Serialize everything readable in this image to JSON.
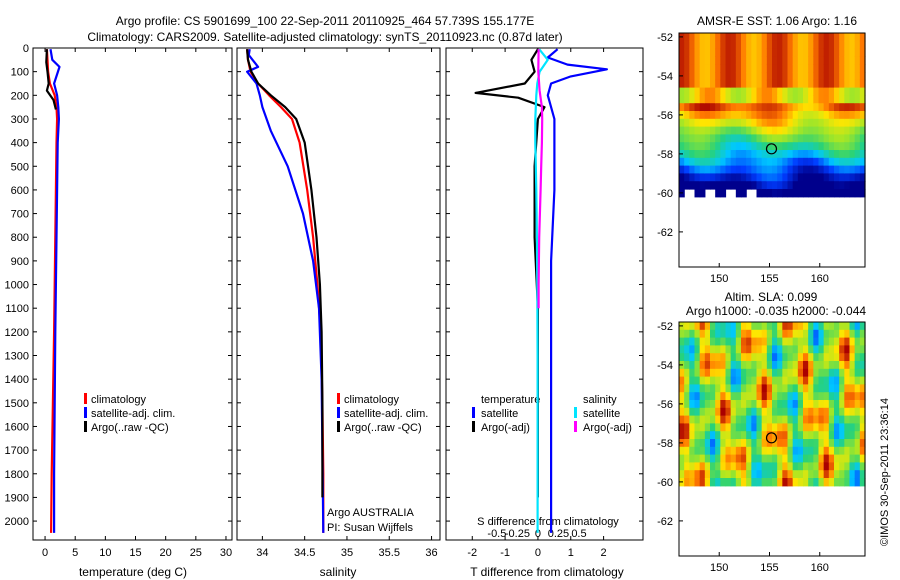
{
  "title_line1": "Argo profile: CS 5901699_100 22-Sep-2011 20110925_464 57.739S 155.177E",
  "title_line2": "Climatology: CARS2009. Satellite-adjusted climatology: synTS_20110923.nc (0.87d later)",
  "side_text": "©IMOS 30-Sep-2011 23:36:14",
  "colors": {
    "clim": "#ff0000",
    "sat": "#0000ff",
    "argo": "#000000",
    "sal_sat": "#00e5ff",
    "sal_argo": "#ff00ff"
  },
  "chart_data": [
    {
      "id": "temp",
      "type": "line",
      "xlabel": "temperature (deg C)",
      "ylabel": "",
      "xlim": [
        -2,
        31
      ],
      "ylim": [
        2080,
        0
      ],
      "xticks": [
        0,
        5,
        10,
        15,
        20,
        25,
        30
      ],
      "xtick_labels": [
        "0",
        "5",
        "10",
        "15",
        "20",
        "25",
        "30"
      ],
      "yticks": [
        0,
        100,
        200,
        300,
        400,
        500,
        600,
        700,
        800,
        900,
        1000,
        1100,
        1200,
        1300,
        1400,
        1500,
        1600,
        1700,
        1800,
        1900,
        2000
      ],
      "ytick_labels": [
        "0",
        "100",
        "200",
        "300",
        "400",
        "500",
        "600",
        "700",
        "800",
        "900",
        "1000",
        "1100",
        "1200",
        "1300",
        "1400",
        "1500",
        "1600",
        "1700",
        "1800",
        "1900",
        "2000"
      ],
      "legend": [
        "climatology",
        "satellite-adj. clim.",
        "Argo(..raw -QC)"
      ],
      "series": [
        {
          "name": "climatology",
          "color": "#ff0000",
          "x": [
            0.3,
            0.4,
            0.5,
            0.8,
            1.6,
            1.9,
            2.0,
            1.9,
            1.8,
            1.7,
            1.6,
            1.5,
            1.3,
            1.1,
            1.0
          ],
          "y": [
            5,
            50,
            100,
            150,
            200,
            250,
            300,
            400,
            600,
            800,
            1000,
            1200,
            1500,
            1800,
            2050
          ]
        },
        {
          "name": "satellite-adj. clim.",
          "color": "#0000ff",
          "x": [
            0.9,
            1.2,
            2.4,
            1.5,
            2.0,
            2.2,
            2.3,
            2.1,
            2.0,
            1.9,
            1.8,
            1.7,
            1.6,
            1.5,
            1.5
          ],
          "y": [
            5,
            50,
            80,
            150,
            200,
            250,
            300,
            400,
            600,
            800,
            1000,
            1200,
            1500,
            1800,
            2050
          ]
        },
        {
          "name": "Argo(..raw -QC)",
          "color": "#000000",
          "x": [
            0.3,
            0.2,
            0.4,
            0.6,
            0.3,
            1.4,
            1.8
          ],
          "y": [
            5,
            60,
            100,
            150,
            180,
            220,
            260
          ]
        }
      ]
    },
    {
      "id": "sal",
      "type": "line",
      "xlabel": "salinity",
      "ylabel": "",
      "xlim": [
        33.7,
        36.1
      ],
      "ylim": [
        2080,
        0
      ],
      "xticks": [
        34,
        34.5,
        35,
        35.5,
        36
      ],
      "xtick_labels": [
        "34",
        "34.5",
        "35",
        "35.5",
        "36"
      ],
      "yticks": [
        0,
        100,
        200,
        300,
        400,
        500,
        600,
        700,
        800,
        900,
        1000,
        1100,
        1200,
        1300,
        1400,
        1500,
        1600,
        1700,
        1800,
        1900,
        2000
      ],
      "legend": [
        "climatology",
        "satellite-adj. clim.",
        "Argo(..raw -QC)"
      ],
      "annotation": [
        "Argo AUSTRALIA",
        "PI: Susan Wijffels"
      ],
      "series": [
        {
          "name": "climatology",
          "color": "#ff0000",
          "x": [
            33.82,
            33.83,
            33.86,
            33.95,
            34.08,
            34.22,
            34.35,
            34.44,
            34.53,
            34.6,
            34.65,
            34.69,
            34.71,
            34.72,
            34.72
          ],
          "y": [
            5,
            50,
            100,
            150,
            200,
            250,
            300,
            400,
            600,
            800,
            1000,
            1200,
            1500,
            1800,
            2050
          ]
        },
        {
          "name": "satellite-adj. clim.",
          "color": "#0000ff",
          "x": [
            33.85,
            33.84,
            33.95,
            33.82,
            33.93,
            33.97,
            34.0,
            34.1,
            34.3,
            34.48,
            34.6,
            34.67,
            34.7,
            34.71,
            34.72
          ],
          "y": [
            5,
            30,
            80,
            100,
            150,
            200,
            250,
            350,
            500,
            700,
            900,
            1100,
            1400,
            1700,
            2050
          ]
        },
        {
          "name": "Argo(..raw -QC)",
          "color": "#000000",
          "x": [
            33.82,
            33.83,
            33.87,
            33.95,
            34.1,
            34.27,
            34.4,
            34.5,
            34.58,
            34.64,
            34.68,
            34.7,
            34.71,
            34.71
          ],
          "y": [
            5,
            50,
            100,
            150,
            200,
            250,
            300,
            400,
            600,
            800,
            1000,
            1200,
            1500,
            1900
          ]
        }
      ]
    },
    {
      "id": "diff",
      "type": "line",
      "xlabel": "T difference from climatology",
      "top_label": "S difference from climatology",
      "xlim": [
        -2.8,
        3.2
      ],
      "ylim": [
        2080,
        0
      ],
      "xticks": [
        -2,
        -1,
        0,
        1,
        2
      ],
      "xtick_labels": [
        "-2",
        "-1",
        "0",
        "1",
        "2"
      ],
      "sticks": [
        -0.5,
        -0.25,
        0,
        0.25,
        0.5
      ],
      "stick_labels": [
        "-0.5",
        "-0.25",
        "0",
        "0.25",
        "0.5"
      ],
      "yticks": [
        0,
        100,
        200,
        300,
        400,
        500,
        600,
        700,
        800,
        900,
        1000,
        1100,
        1200,
        1300,
        1400,
        1500,
        1600,
        1700,
        1800,
        1900,
        2000
      ],
      "legend_temp": {
        "title": "temperature",
        "items": [
          "satellite",
          "Argo(-adj)"
        ]
      },
      "legend_sal": {
        "title": "salinity",
        "items": [
          "satellite",
          "Argo(-adj)"
        ]
      },
      "series": [
        {
          "name": "T satellite",
          "color": "#0000ff",
          "x": [
            0.6,
            0.3,
            0.9,
            2.1,
            1.0,
            0.4,
            0.3,
            0.5,
            0.5,
            0.4,
            0.4,
            0.4,
            0.4
          ],
          "y": [
            5,
            40,
            70,
            90,
            120,
            150,
            200,
            300,
            600,
            900,
            1200,
            1600,
            2050
          ]
        },
        {
          "name": "T Argo(-adj)",
          "color": "#000000",
          "x": [
            0.0,
            -0.2,
            -0.1,
            -0.4,
            -1.9,
            -0.6,
            0.2,
            0.0,
            -0.1,
            -0.1,
            0.0,
            0.0,
            0.0
          ],
          "y": [
            5,
            50,
            100,
            150,
            190,
            210,
            250,
            300,
            500,
            800,
            1100,
            1500,
            1900
          ]
        },
        {
          "name": "S satellite",
          "color": "#00e5ff",
          "x": [
            0.04,
            0.3,
            0.05,
            -0.02,
            -0.05,
            -0.08,
            -0.08,
            -0.05,
            -0.03,
            -0.02,
            -0.01,
            -0.01,
            -0.01
          ],
          "y": [
            5,
            50,
            100,
            150,
            200,
            300,
            400,
            600,
            800,
            1000,
            1300,
            1700,
            2050
          ]
        },
        {
          "name": "S Argo(-adj)",
          "color": "#ff00ff",
          "x": [
            0.02,
            0.01,
            0.05,
            0.12,
            0.13,
            0.12,
            0.1,
            0.08,
            0.06,
            0.04,
            0.03,
            0.02,
            0.02
          ],
          "y": [
            5,
            100,
            180,
            250,
            300,
            400,
            500,
            600,
            700,
            800,
            900,
            1000,
            1100
          ]
        }
      ]
    },
    {
      "id": "sst_map",
      "type": "heatmap",
      "title": "AMSR-E SST: 1.06 Argo: 1.16",
      "xlim": [
        146,
        164.5
      ],
      "ylim": [
        -63.8,
        -51.8
      ],
      "xticks": [
        150,
        155,
        160
      ],
      "xtick_labels": [
        "150",
        "155",
        "160"
      ],
      "yticks": [
        -52,
        -54,
        -56,
        -58,
        -60,
        -62
      ],
      "ytick_labels": [
        "-52",
        "-54",
        "-56",
        "-58",
        "-60",
        "-62"
      ],
      "marker": {
        "lon": 155.2,
        "lat": -57.74
      }
    },
    {
      "id": "sla_map",
      "type": "heatmap",
      "title": "Altim. SLA: 0.099",
      "subtitle": "Argo h1000: -0.035 h2000: -0.044",
      "xlim": [
        146,
        164.5
      ],
      "ylim": [
        -63.8,
        -51.8
      ],
      "xticks": [
        150,
        155,
        160
      ],
      "xtick_labels": [
        "150",
        "155",
        "160"
      ],
      "yticks": [
        -52,
        -54,
        -56,
        -58,
        -60,
        -62
      ],
      "ytick_labels": [
        "-52",
        "-54",
        "-56",
        "-58",
        "-60",
        "-62"
      ],
      "marker": {
        "lon": 155.2,
        "lat": -57.74
      }
    }
  ]
}
